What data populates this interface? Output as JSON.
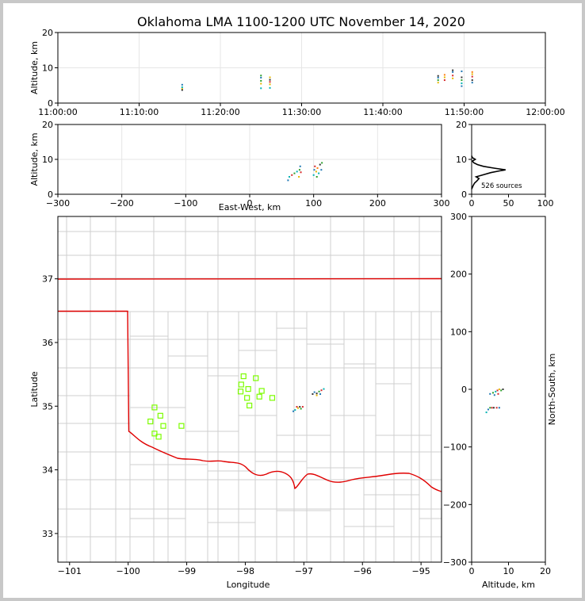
{
  "title": "Oklahoma LMA 1100-1200 UTC November 14, 2020",
  "chart_data": [
    {
      "id": "time_height",
      "type": "scatter",
      "ylabel": "Altitude, km",
      "ylim": [
        0,
        20
      ],
      "yticks": [
        "0",
        "10",
        "20"
      ],
      "xlim": [
        0,
        60
      ],
      "xticks": [
        {
          "v": 0,
          "t": "11:00:00"
        },
        {
          "v": 10,
          "t": "11:10:00"
        },
        {
          "v": 20,
          "t": "11:20:00"
        },
        {
          "v": 30,
          "t": "11:30:00"
        },
        {
          "v": 40,
          "t": "11:40:00"
        },
        {
          "v": 50,
          "t": "11:50:00"
        },
        {
          "v": 60,
          "t": "12:00:00"
        }
      ],
      "points": [
        [
          15.3,
          4.0,
          "#e6b800"
        ],
        [
          15.3,
          4.5,
          "#00b3b3"
        ],
        [
          15.3,
          5.2,
          "#1f77b4"
        ],
        [
          15.3,
          3.7,
          "#333333"
        ],
        [
          25.0,
          4.2,
          "#00b3b3"
        ],
        [
          25.0,
          5.5,
          "#e6b800"
        ],
        [
          25.0,
          6.3,
          "#2ca02c"
        ],
        [
          25.0,
          7.2,
          "#1f77b4"
        ],
        [
          25.0,
          7.8,
          "#2ca02c"
        ],
        [
          26.1,
          4.3,
          "#00b3b3"
        ],
        [
          26.1,
          5.3,
          "#e6b800"
        ],
        [
          26.1,
          6.0,
          "#d62728"
        ],
        [
          26.1,
          6.6,
          "#333333"
        ],
        [
          26.1,
          7.3,
          "#e6b800"
        ],
        [
          46.8,
          5.8,
          "#e6b800"
        ],
        [
          46.8,
          6.5,
          "#2ca02c"
        ],
        [
          46.8,
          7.2,
          "#1f77b4"
        ],
        [
          46.8,
          7.7,
          "#333333"
        ],
        [
          47.6,
          6.5,
          "#d62728"
        ],
        [
          47.6,
          7.3,
          "#e6b800"
        ],
        [
          47.6,
          8.0,
          "#ff7f0e"
        ],
        [
          48.6,
          7.0,
          "#e6b800"
        ],
        [
          48.6,
          7.8,
          "#d62728"
        ],
        [
          48.6,
          8.8,
          "#1f77b4"
        ],
        [
          48.6,
          9.3,
          "#333333"
        ],
        [
          49.7,
          4.8,
          "#1f77b4"
        ],
        [
          49.7,
          5.6,
          "#00b3b3"
        ],
        [
          49.7,
          6.5,
          "#2ca02c"
        ],
        [
          49.7,
          7.3,
          "#333333"
        ],
        [
          49.7,
          9.0,
          "#1f77b4"
        ],
        [
          51.0,
          5.8,
          "#1f77b4"
        ],
        [
          51.0,
          6.5,
          "#333333"
        ],
        [
          51.0,
          7.5,
          "#d62728"
        ],
        [
          51.0,
          8.2,
          "#e6b800"
        ],
        [
          51.0,
          8.8,
          "#ff7f0e"
        ]
      ]
    },
    {
      "id": "ew_height",
      "type": "scatter",
      "xlabel": "East-West, km",
      "ylabel": "Altitude, km",
      "xlim": [
        -300,
        300
      ],
      "ylim": [
        0,
        20
      ],
      "xticks": [
        "−300",
        "−200",
        "−100",
        "0",
        "100",
        "200",
        "300"
      ],
      "yticks": [
        "0",
        "10",
        "20"
      ],
      "points": [
        [
          60,
          4.0,
          "#1f77b4"
        ],
        [
          62,
          5.0,
          "#00b3b3"
        ],
        [
          66,
          5.5,
          "#d62728"
        ],
        [
          70,
          6.0,
          "#2ca02c"
        ],
        [
          74,
          6.5,
          "#00b3b3"
        ],
        [
          77,
          5.0,
          "#e6b800"
        ],
        [
          78,
          7.0,
          "#2ca02c"
        ],
        [
          79,
          8.0,
          "#1f77b4"
        ],
        [
          80,
          6.3,
          "#d62728"
        ],
        [
          100,
          5.5,
          "#00b3b3"
        ],
        [
          101,
          7.0,
          "#1f77b4"
        ],
        [
          102,
          8.0,
          "#d62728"
        ],
        [
          104,
          6.5,
          "#e6b800"
        ],
        [
          105,
          5.0,
          "#2ca02c"
        ],
        [
          106,
          7.5,
          "#ff7f0e"
        ],
        [
          108,
          6.0,
          "#00b3b3"
        ],
        [
          110,
          8.5,
          "#333333"
        ],
        [
          112,
          7.0,
          "#1f77b4"
        ],
        [
          113,
          9.0,
          "#2ca02c"
        ]
      ]
    },
    {
      "id": "alt_hist",
      "type": "line",
      "xlim": [
        0,
        100
      ],
      "ylim": [
        0,
        20
      ],
      "xticks": [
        "0",
        "50",
        "100"
      ],
      "yticks": [
        "0",
        "10",
        "20"
      ],
      "annotation": "526 sources",
      "profile": [
        [
          0,
          1.5
        ],
        [
          2,
          2.5
        ],
        [
          4,
          3.2
        ],
        [
          7,
          3.8
        ],
        [
          10,
          4.5
        ],
        [
          6,
          5.0
        ],
        [
          16,
          5.6
        ],
        [
          26,
          6.2
        ],
        [
          38,
          6.7
        ],
        [
          46,
          7.0
        ],
        [
          30,
          7.5
        ],
        [
          16,
          8.0
        ],
        [
          8,
          8.5
        ],
        [
          3,
          9.0
        ],
        [
          1,
          9.5
        ],
        [
          5,
          10.0
        ],
        [
          1,
          10.5
        ],
        [
          0,
          11.0
        ]
      ]
    },
    {
      "id": "plan_view",
      "type": "scatter",
      "xlabel": "Longitude",
      "ylabel": "Latitude",
      "xlim": [
        -101.2,
        -94.65
      ],
      "ylim": [
        32.55,
        37.98
      ],
      "xticks": [
        {
          "v": -101,
          "t": "−101"
        },
        {
          "v": -100,
          "t": "−100"
        },
        {
          "v": -99,
          "t": "−99"
        },
        {
          "v": -98,
          "t": "−98"
        },
        {
          "v": -97,
          "t": "−97"
        },
        {
          "v": -96,
          "t": "−96"
        },
        {
          "v": -95,
          "t": "−95"
        }
      ],
      "yticks": [
        {
          "v": 33,
          "t": "33"
        },
        {
          "v": 34,
          "t": "34"
        },
        {
          "v": 35,
          "t": "35"
        },
        {
          "v": 36,
          "t": "36"
        },
        {
          "v": 37,
          "t": "37"
        }
      ],
      "stations": [
        [
          -99.55,
          34.98
        ],
        [
          -99.45,
          34.85
        ],
        [
          -99.62,
          34.76
        ],
        [
          -99.4,
          34.69
        ],
        [
          -99.55,
          34.57
        ],
        [
          -99.48,
          34.52
        ],
        [
          -99.09,
          34.69
        ],
        [
          -98.03,
          35.47
        ],
        [
          -97.82,
          35.44
        ],
        [
          -98.07,
          35.34
        ],
        [
          -97.95,
          35.27
        ],
        [
          -98.08,
          35.23
        ],
        [
          -97.72,
          35.24
        ],
        [
          -97.97,
          35.13
        ],
        [
          -97.76,
          35.15
        ],
        [
          -97.54,
          35.13
        ],
        [
          -97.93,
          35.01
        ]
      ],
      "points": [
        [
          -97.18,
          34.92,
          "#1f77b4"
        ],
        [
          -97.15,
          34.94,
          "#00b3b3"
        ],
        [
          -97.12,
          34.99,
          "#d62728"
        ],
        [
          -97.07,
          34.99,
          "#333333"
        ],
        [
          -97.02,
          34.99,
          "#d62728"
        ],
        [
          -97.1,
          34.97,
          "#e6b800"
        ],
        [
          -97.05,
          34.96,
          "#2ca02c"
        ],
        [
          -96.82,
          35.22,
          "#1f77b4"
        ],
        [
          -96.78,
          35.2,
          "#333333"
        ],
        [
          -96.74,
          35.23,
          "#2ca02c"
        ],
        [
          -96.7,
          35.25,
          "#d62728"
        ],
        [
          -96.66,
          35.27,
          "#00b3b3"
        ],
        [
          -96.78,
          35.17,
          "#e6b800"
        ],
        [
          -96.72,
          35.19,
          "#1f77b4"
        ],
        [
          -96.85,
          35.19,
          "#333333"
        ]
      ]
    },
    {
      "id": "ns_height",
      "type": "scatter",
      "xlabel": "Altitude, km",
      "ylabel": "North-South, km",
      "xlim": [
        0,
        20
      ],
      "ylim": [
        -300,
        300
      ],
      "xticks": [
        "0",
        "10",
        "20"
      ],
      "yticks": [
        {
          "v": -300,
          "t": "−300"
        },
        {
          "v": -200,
          "t": "−200"
        },
        {
          "v": -100,
          "t": "−100"
        },
        {
          "v": 0,
          "t": "0"
        },
        {
          "v": 100,
          "t": "100"
        },
        {
          "v": 200,
          "t": "200"
        },
        {
          "v": 300,
          "t": "300"
        }
      ],
      "points": [
        [
          4.0,
          -40,
          "#00b3b3"
        ],
        [
          4.5,
          -35,
          "#1f77b4"
        ],
        [
          5.0,
          -32,
          "#2ca02c"
        ],
        [
          5.5,
          -32,
          "#d62728"
        ],
        [
          6.0,
          -32,
          "#333333"
        ],
        [
          6.8,
          -32,
          "#d62728"
        ],
        [
          7.5,
          -32,
          "#1f77b4"
        ],
        [
          5.0,
          -8,
          "#1f77b4"
        ],
        [
          5.8,
          -6,
          "#2ca02c"
        ],
        [
          6.5,
          -4,
          "#00b3b3"
        ],
        [
          7.0,
          -2,
          "#d62728"
        ],
        [
          7.5,
          0,
          "#e6b800"
        ],
        [
          8.0,
          -2,
          "#2ca02c"
        ],
        [
          8.5,
          0,
          "#333333"
        ],
        [
          6.2,
          -10,
          "#1f77b4"
        ],
        [
          7.2,
          -8,
          "#d62728"
        ]
      ]
    }
  ]
}
